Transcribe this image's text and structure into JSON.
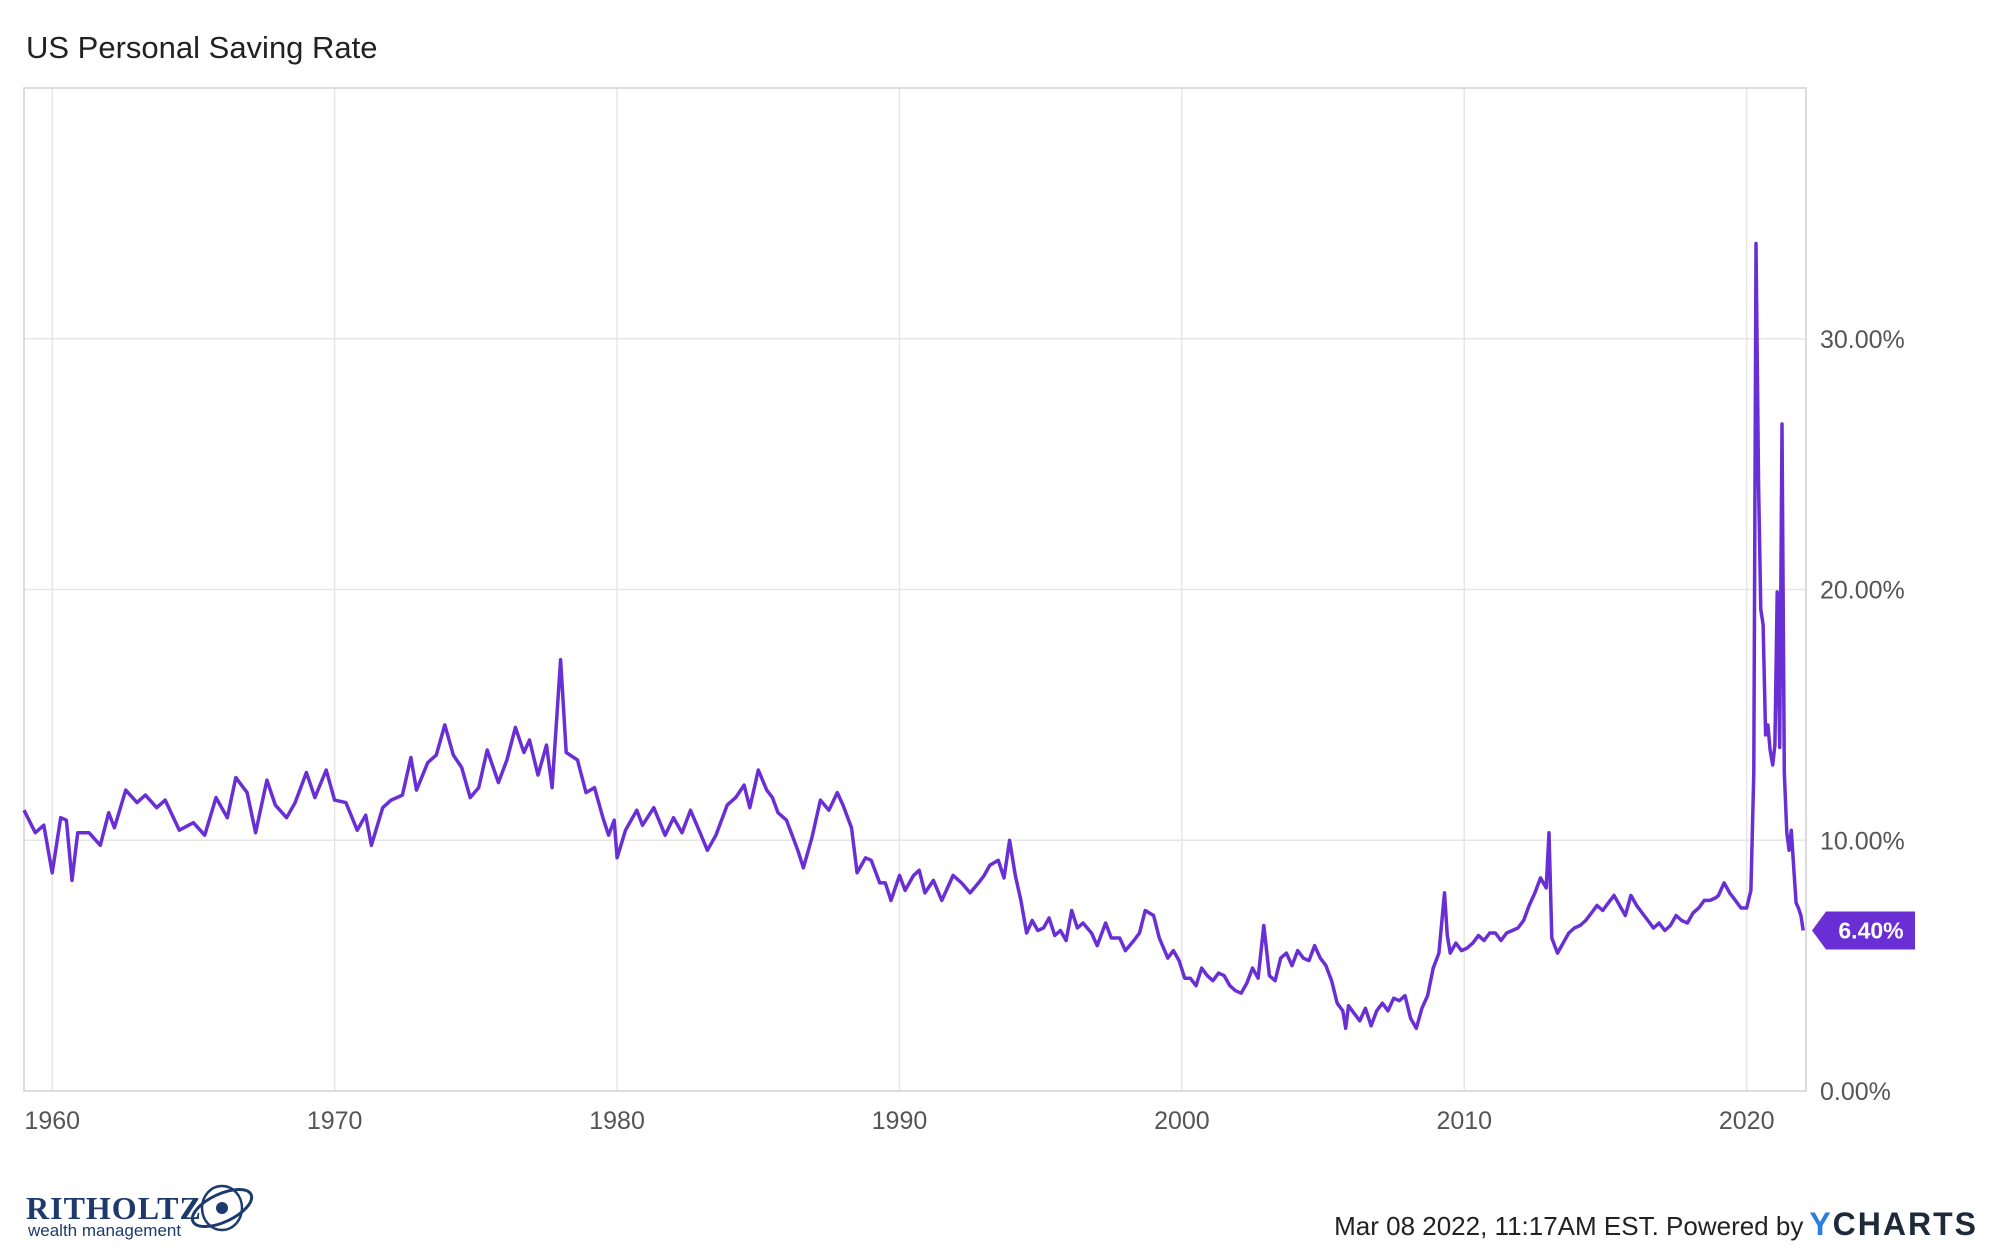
{
  "chart_data": {
    "type": "line",
    "title": "US Personal Saving Rate",
    "x_tick_labels": [
      "1960",
      "1970",
      "1980",
      "1990",
      "2000",
      "2010",
      "2020"
    ],
    "y_tick_labels": [
      "0.00%",
      "10.00%",
      "20.00%",
      "30.00%"
    ],
    "xlim": [
      1959.0,
      2022.1
    ],
    "ylim": [
      0,
      40
    ],
    "grid": true,
    "y_axis_position": "right",
    "series": [
      {
        "color": "#6a2fd4",
        "last_value_label": "6.40%",
        "points": [
          [
            1959.0,
            11.2
          ],
          [
            1959.4,
            10.3
          ],
          [
            1959.7,
            10.6
          ],
          [
            1960.0,
            8.7
          ],
          [
            1960.3,
            10.9
          ],
          [
            1960.5,
            10.8
          ],
          [
            1960.7,
            8.4
          ],
          [
            1960.9,
            10.3
          ],
          [
            1961.3,
            10.3
          ],
          [
            1961.7,
            9.8
          ],
          [
            1962.0,
            11.1
          ],
          [
            1962.2,
            10.5
          ],
          [
            1962.6,
            12.0
          ],
          [
            1963.0,
            11.5
          ],
          [
            1963.3,
            11.8
          ],
          [
            1963.7,
            11.3
          ],
          [
            1964.0,
            11.6
          ],
          [
            1964.5,
            10.4
          ],
          [
            1965.0,
            10.7
          ],
          [
            1965.4,
            10.2
          ],
          [
            1965.8,
            11.7
          ],
          [
            1966.2,
            10.9
          ],
          [
            1966.5,
            12.5
          ],
          [
            1966.9,
            11.9
          ],
          [
            1967.2,
            10.3
          ],
          [
            1967.6,
            12.4
          ],
          [
            1967.9,
            11.4
          ],
          [
            1968.3,
            10.9
          ],
          [
            1968.6,
            11.5
          ],
          [
            1969.0,
            12.7
          ],
          [
            1969.3,
            11.7
          ],
          [
            1969.7,
            12.8
          ],
          [
            1970.0,
            11.6
          ],
          [
            1970.4,
            11.5
          ],
          [
            1970.8,
            10.4
          ],
          [
            1971.1,
            11.0
          ],
          [
            1971.3,
            9.8
          ],
          [
            1971.7,
            11.3
          ],
          [
            1972.0,
            11.6
          ],
          [
            1972.4,
            11.8
          ],
          [
            1972.7,
            13.3
          ],
          [
            1972.9,
            12.0
          ],
          [
            1973.3,
            13.1
          ],
          [
            1973.6,
            13.4
          ],
          [
            1973.9,
            14.6
          ],
          [
            1974.2,
            13.4
          ],
          [
            1974.5,
            12.9
          ],
          [
            1974.8,
            11.7
          ],
          [
            1975.1,
            12.1
          ],
          [
            1975.4,
            13.6
          ],
          [
            1975.8,
            12.3
          ],
          [
            1976.1,
            13.2
          ],
          [
            1976.4,
            14.5
          ],
          [
            1976.7,
            13.5
          ],
          [
            1976.9,
            14.0
          ],
          [
            1977.2,
            12.6
          ],
          [
            1977.5,
            13.8
          ],
          [
            1977.7,
            12.1
          ],
          [
            1978.0,
            17.2
          ],
          [
            1978.2,
            13.5
          ],
          [
            1978.6,
            13.2
          ],
          [
            1978.9,
            11.9
          ],
          [
            1979.2,
            12.1
          ],
          [
            1979.5,
            10.9
          ],
          [
            1979.7,
            10.2
          ],
          [
            1979.9,
            10.8
          ],
          [
            1980.0,
            9.3
          ],
          [
            1980.3,
            10.4
          ],
          [
            1980.7,
            11.2
          ],
          [
            1980.9,
            10.6
          ],
          [
            1981.3,
            11.3
          ],
          [
            1981.7,
            10.2
          ],
          [
            1982.0,
            10.9
          ],
          [
            1982.3,
            10.3
          ],
          [
            1982.6,
            11.2
          ],
          [
            1982.9,
            10.4
          ],
          [
            1983.2,
            9.6
          ],
          [
            1983.5,
            10.2
          ],
          [
            1983.9,
            11.4
          ],
          [
            1984.2,
            11.7
          ],
          [
            1984.5,
            12.2
          ],
          [
            1984.7,
            11.3
          ],
          [
            1985.0,
            12.8
          ],
          [
            1985.3,
            12.0
          ],
          [
            1985.5,
            11.7
          ],
          [
            1985.7,
            11.1
          ],
          [
            1986.0,
            10.8
          ],
          [
            1986.4,
            9.6
          ],
          [
            1986.6,
            8.9
          ],
          [
            1986.9,
            10.1
          ],
          [
            1987.2,
            11.6
          ],
          [
            1987.5,
            11.2
          ],
          [
            1987.8,
            11.9
          ],
          [
            1988.0,
            11.4
          ],
          [
            1988.3,
            10.5
          ],
          [
            1988.5,
            8.7
          ],
          [
            1988.8,
            9.3
          ],
          [
            1989.0,
            9.2
          ],
          [
            1989.3,
            8.3
          ],
          [
            1989.5,
            8.3
          ],
          [
            1989.7,
            7.6
          ],
          [
            1990.0,
            8.6
          ],
          [
            1990.2,
            8.0
          ],
          [
            1990.5,
            8.6
          ],
          [
            1990.7,
            8.8
          ],
          [
            1990.9,
            7.9
          ],
          [
            1991.2,
            8.4
          ],
          [
            1991.5,
            7.6
          ],
          [
            1991.7,
            8.1
          ],
          [
            1991.9,
            8.6
          ],
          [
            1992.2,
            8.3
          ],
          [
            1992.5,
            7.9
          ],
          [
            1992.8,
            8.3
          ],
          [
            1993.0,
            8.6
          ],
          [
            1993.2,
            9.0
          ],
          [
            1993.5,
            9.2
          ],
          [
            1993.7,
            8.5
          ],
          [
            1993.9,
            10.0
          ],
          [
            1994.1,
            8.6
          ],
          [
            1994.3,
            7.6
          ],
          [
            1994.5,
            6.3
          ],
          [
            1994.7,
            6.8
          ],
          [
            1994.9,
            6.4
          ],
          [
            1995.1,
            6.5
          ],
          [
            1995.3,
            6.9
          ],
          [
            1995.5,
            6.2
          ],
          [
            1995.7,
            6.4
          ],
          [
            1995.9,
            6.0
          ],
          [
            1996.1,
            7.2
          ],
          [
            1996.3,
            6.5
          ],
          [
            1996.5,
            6.7
          ],
          [
            1996.8,
            6.3
          ],
          [
            1997.0,
            5.8
          ],
          [
            1997.3,
            6.7
          ],
          [
            1997.5,
            6.1
          ],
          [
            1997.8,
            6.1
          ],
          [
            1998.0,
            5.6
          ],
          [
            1998.3,
            6.0
          ],
          [
            1998.5,
            6.3
          ],
          [
            1998.7,
            7.2
          ],
          [
            1999.0,
            7.0
          ],
          [
            1999.2,
            6.1
          ],
          [
            1999.5,
            5.3
          ],
          [
            1999.7,
            5.6
          ],
          [
            1999.9,
            5.2
          ],
          [
            2000.1,
            4.5
          ],
          [
            2000.3,
            4.5
          ],
          [
            2000.5,
            4.2
          ],
          [
            2000.7,
            4.9
          ],
          [
            2000.9,
            4.6
          ],
          [
            2001.1,
            4.4
          ],
          [
            2001.3,
            4.7
          ],
          [
            2001.5,
            4.6
          ],
          [
            2001.7,
            4.2
          ],
          [
            2001.9,
            4.0
          ],
          [
            2002.1,
            3.9
          ],
          [
            2002.3,
            4.3
          ],
          [
            2002.5,
            4.9
          ],
          [
            2002.7,
            4.5
          ],
          [
            2002.9,
            6.6
          ],
          [
            2003.1,
            4.6
          ],
          [
            2003.3,
            4.4
          ],
          [
            2003.5,
            5.3
          ],
          [
            2003.7,
            5.5
          ],
          [
            2003.9,
            5.0
          ],
          [
            2004.1,
            5.6
          ],
          [
            2004.3,
            5.3
          ],
          [
            2004.5,
            5.2
          ],
          [
            2004.7,
            5.8
          ],
          [
            2004.9,
            5.3
          ],
          [
            2005.1,
            5.0
          ],
          [
            2005.3,
            4.4
          ],
          [
            2005.5,
            3.5
          ],
          [
            2005.7,
            3.2
          ],
          [
            2005.8,
            2.5
          ],
          [
            2005.9,
            3.4
          ],
          [
            2006.1,
            3.1
          ],
          [
            2006.3,
            2.8
          ],
          [
            2006.5,
            3.3
          ],
          [
            2006.7,
            2.6
          ],
          [
            2006.9,
            3.2
          ],
          [
            2007.1,
            3.5
          ],
          [
            2007.3,
            3.2
          ],
          [
            2007.5,
            3.7
          ],
          [
            2007.7,
            3.6
          ],
          [
            2007.9,
            3.8
          ],
          [
            2008.1,
            2.9
          ],
          [
            2008.3,
            2.5
          ],
          [
            2008.5,
            3.3
          ],
          [
            2008.7,
            3.8
          ],
          [
            2008.9,
            4.9
          ],
          [
            2009.1,
            5.5
          ],
          [
            2009.3,
            7.9
          ],
          [
            2009.4,
            6.2
          ],
          [
            2009.5,
            5.5
          ],
          [
            2009.7,
            5.9
          ],
          [
            2009.9,
            5.6
          ],
          [
            2010.1,
            5.7
          ],
          [
            2010.3,
            5.9
          ],
          [
            2010.5,
            6.2
          ],
          [
            2010.7,
            6.0
          ],
          [
            2010.9,
            6.3
          ],
          [
            2011.1,
            6.3
          ],
          [
            2011.3,
            6.0
          ],
          [
            2011.5,
            6.3
          ],
          [
            2011.7,
            6.4
          ],
          [
            2011.9,
            6.5
          ],
          [
            2012.1,
            6.8
          ],
          [
            2012.3,
            7.4
          ],
          [
            2012.5,
            7.9
          ],
          [
            2012.7,
            8.5
          ],
          [
            2012.9,
            8.1
          ],
          [
            2013.0,
            10.3
          ],
          [
            2013.1,
            6.1
          ],
          [
            2013.3,
            5.5
          ],
          [
            2013.5,
            5.9
          ],
          [
            2013.7,
            6.3
          ],
          [
            2013.9,
            6.5
          ],
          [
            2014.1,
            6.6
          ],
          [
            2014.3,
            6.8
          ],
          [
            2014.5,
            7.1
          ],
          [
            2014.7,
            7.4
          ],
          [
            2014.9,
            7.2
          ],
          [
            2015.1,
            7.5
          ],
          [
            2015.3,
            7.8
          ],
          [
            2015.5,
            7.4
          ],
          [
            2015.7,
            7.0
          ],
          [
            2015.9,
            7.8
          ],
          [
            2016.1,
            7.4
          ],
          [
            2016.3,
            7.1
          ],
          [
            2016.5,
            6.8
          ],
          [
            2016.7,
            6.5
          ],
          [
            2016.9,
            6.7
          ],
          [
            2017.1,
            6.4
          ],
          [
            2017.3,
            6.6
          ],
          [
            2017.5,
            7.0
          ],
          [
            2017.7,
            6.8
          ],
          [
            2017.9,
            6.7
          ],
          [
            2018.1,
            7.1
          ],
          [
            2018.3,
            7.3
          ],
          [
            2018.5,
            7.6
          ],
          [
            2018.7,
            7.6
          ],
          [
            2018.9,
            7.7
          ],
          [
            2019.0,
            7.8
          ],
          [
            2019.2,
            8.3
          ],
          [
            2019.4,
            7.9
          ],
          [
            2019.6,
            7.6
          ],
          [
            2019.8,
            7.3
          ],
          [
            2020.0,
            7.3
          ],
          [
            2020.15,
            8.0
          ],
          [
            2020.25,
            12.7
          ],
          [
            2020.33,
            33.8
          ],
          [
            2020.42,
            24.1
          ],
          [
            2020.5,
            19.2
          ],
          [
            2020.58,
            18.6
          ],
          [
            2020.67,
            14.2
          ],
          [
            2020.75,
            14.6
          ],
          [
            2020.83,
            13.6
          ],
          [
            2020.92,
            13.0
          ],
          [
            2021.0,
            13.8
          ],
          [
            2021.08,
            19.9
          ],
          [
            2021.17,
            13.7
          ],
          [
            2021.25,
            26.6
          ],
          [
            2021.33,
            12.7
          ],
          [
            2021.42,
            10.3
          ],
          [
            2021.5,
            9.6
          ],
          [
            2021.58,
            10.4
          ],
          [
            2021.67,
            8.8
          ],
          [
            2021.75,
            7.5
          ],
          [
            2021.83,
            7.3
          ],
          [
            2021.92,
            7.0
          ],
          [
            2022.0,
            6.4
          ]
        ]
      }
    ]
  },
  "footer": {
    "text": "Mar 08 2022, 11:17AM EST. Powered by",
    "brand_y": "Y",
    "brand_rest": "CHARTS"
  },
  "logo": {
    "name": "RITHOLTZ",
    "tagline": "wealth management"
  }
}
